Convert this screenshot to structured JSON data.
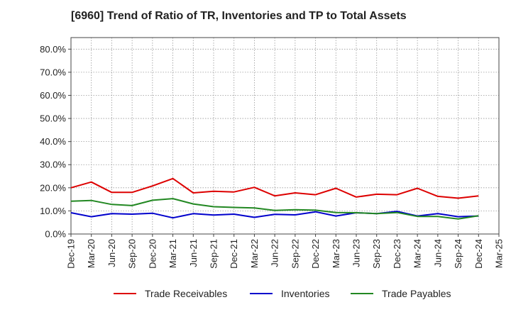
{
  "chart_data": {
    "type": "line",
    "title": "[6960]  Trend of Ratio of TR, Inventories and TP to Total Assets",
    "xlabel": "",
    "ylabel": "",
    "ylim": [
      0,
      85
    ],
    "y_ticks": [
      0,
      10,
      20,
      30,
      40,
      50,
      60,
      70,
      80
    ],
    "y_tick_labels": [
      "0.0%",
      "10.0%",
      "20.0%",
      "30.0%",
      "40.0%",
      "50.0%",
      "60.0%",
      "70.0%",
      "80.0%"
    ],
    "x": [
      "Dec-19",
      "Mar-20",
      "Jun-20",
      "Sep-20",
      "Dec-20",
      "Mar-21",
      "Jun-21",
      "Sep-21",
      "Dec-21",
      "Mar-22",
      "Jun-22",
      "Sep-22",
      "Dec-22",
      "Mar-23",
      "Jun-23",
      "Sep-23",
      "Dec-23",
      "Mar-24",
      "Jun-24",
      "Sep-24",
      "Dec-24",
      "Mar-25"
    ],
    "grid": true,
    "legend_position": "bottom",
    "series": [
      {
        "name": "Trade Receivables",
        "color": "#dd0000",
        "values": [
          20.0,
          22.5,
          18.0,
          18.0,
          20.8,
          24.0,
          17.8,
          18.5,
          18.2,
          20.2,
          16.5,
          17.8,
          17.0,
          19.8,
          16.0,
          17.2,
          17.0,
          19.8,
          16.3,
          15.5,
          16.5,
          null
        ]
      },
      {
        "name": "Inventories",
        "color": "#0000cc",
        "values": [
          9.2,
          7.5,
          8.8,
          8.6,
          9.0,
          7.0,
          8.8,
          8.2,
          8.6,
          7.2,
          8.5,
          8.3,
          9.6,
          7.8,
          9.2,
          8.8,
          9.8,
          7.8,
          8.8,
          7.5,
          7.8,
          null
        ]
      },
      {
        "name": "Trade Payables",
        "color": "#228822",
        "values": [
          14.2,
          14.5,
          12.8,
          12.3,
          14.6,
          15.3,
          13.0,
          11.8,
          11.5,
          11.3,
          10.2,
          10.5,
          10.3,
          9.3,
          9.2,
          8.8,
          9.3,
          7.6,
          7.6,
          6.5,
          7.9,
          null
        ]
      }
    ]
  }
}
